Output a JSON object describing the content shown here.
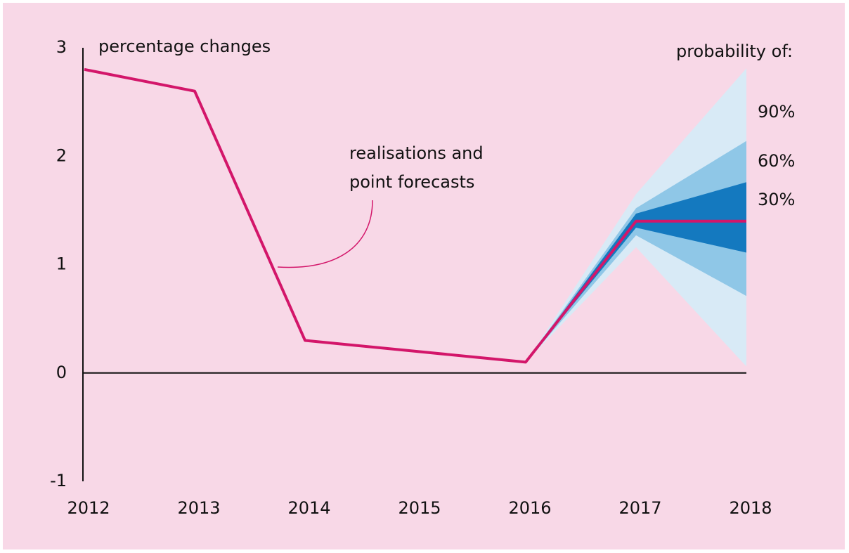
{
  "chart_data": {
    "type": "fan",
    "y_label": "percentage changes",
    "annotation": [
      "realisations and",
      "point forecasts"
    ],
    "legend_title": "probability of:",
    "x": [
      2012,
      2013,
      2014,
      2015,
      2016,
      2017,
      2018
    ],
    "xlim": [
      2012,
      2018
    ],
    "xticks": [
      2012,
      2013,
      2014,
      2015,
      2016,
      2017,
      2018
    ],
    "ylim": [
      -1,
      3
    ],
    "yticks": [
      -1,
      0,
      1,
      2,
      3
    ],
    "series": [
      {
        "name": "realisations and point forecasts",
        "color": "#d3166a",
        "values": [
          2.8,
          2.6,
          0.3,
          0.2,
          0.1,
          1.4,
          1.4
        ]
      }
    ],
    "bands": [
      {
        "name": "90%",
        "color": "#d8eaf6",
        "lower": [
          null,
          null,
          null,
          null,
          0.1,
          1.16,
          0.06
        ],
        "upper": [
          null,
          null,
          null,
          null,
          0.1,
          1.65,
          2.81
        ]
      },
      {
        "name": "60%",
        "color": "#8fc7e7",
        "lower": [
          null,
          null,
          null,
          null,
          0.1,
          1.27,
          0.71
        ],
        "upper": [
          null,
          null,
          null,
          null,
          0.1,
          1.52,
          2.14
        ]
      },
      {
        "name": "30%",
        "color": "#1479bf",
        "lower": [
          null,
          null,
          null,
          null,
          0.1,
          1.34,
          1.11
        ],
        "upper": [
          null,
          null,
          null,
          null,
          0.1,
          1.47,
          1.76
        ]
      }
    ]
  }
}
